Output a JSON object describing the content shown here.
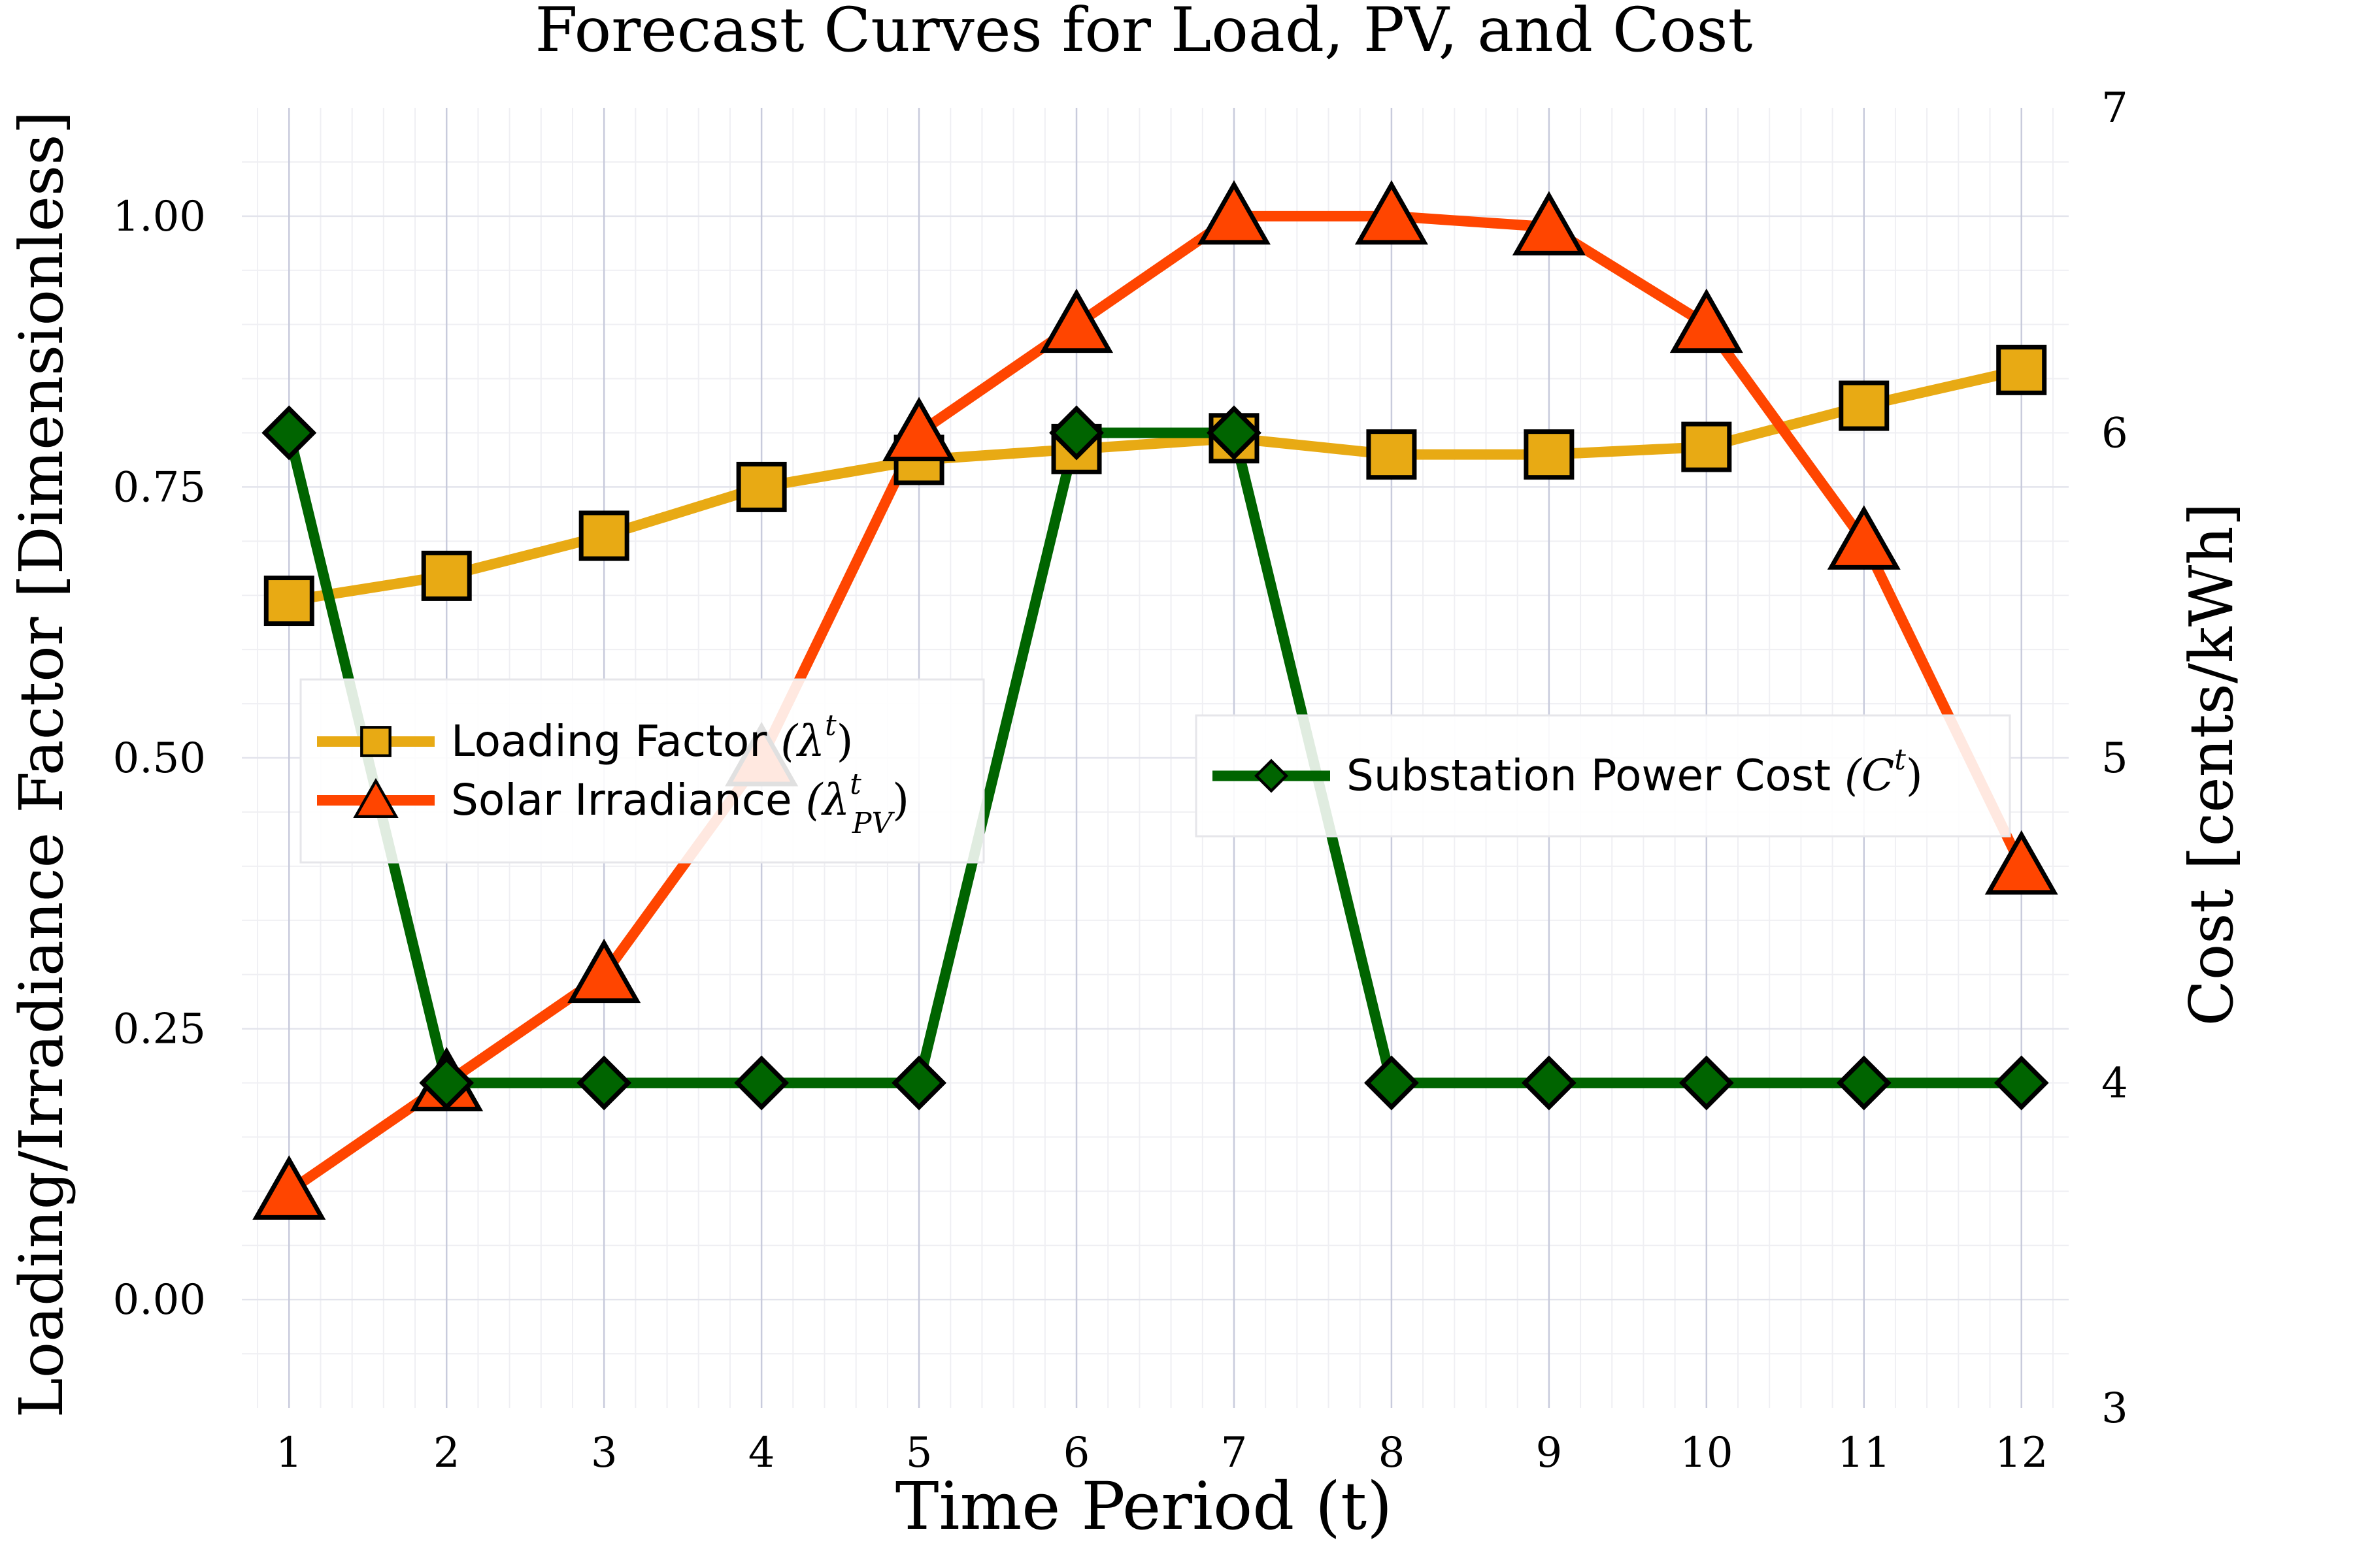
{
  "chart_data": {
    "type": "line",
    "title": "Forecast Curves for Load, PV, and Cost",
    "xlabel": "Time Period (t)",
    "ylabel": "Loading/Irradiance Factor [Dimensionless]",
    "ylabel_right": "Cost [cents/kWh]",
    "x": [
      1,
      2,
      3,
      4,
      5,
      6,
      7,
      8,
      9,
      10,
      11,
      12
    ],
    "x_ticks": [
      "1",
      "2",
      "3",
      "4",
      "5",
      "6",
      "7",
      "8",
      "9",
      "10",
      "11",
      "12"
    ],
    "xlim": [
      0.7,
      12.3
    ],
    "ylim": [
      -0.1,
      1.1
    ],
    "y_ticks": [
      "0.00",
      "0.25",
      "0.50",
      "0.75",
      "1.00"
    ],
    "y_tick_values": [
      0,
      0.25,
      0.5,
      0.75,
      1.0
    ],
    "ylim_right": [
      3,
      7
    ],
    "y_ticks_right": [
      "3",
      "4",
      "5",
      "6",
      "7"
    ],
    "y_tick_values_right": [
      3,
      4,
      5,
      6,
      7
    ],
    "grid": true,
    "series": [
      {
        "name": "Loading Factor (λ^t)",
        "axis": "left",
        "marker": "square",
        "color": "#E8AA14",
        "values": [
          0.645,
          0.668,
          0.705,
          0.75,
          0.775,
          0.785,
          0.795,
          0.78,
          0.78,
          0.787,
          0.825,
          0.858
        ]
      },
      {
        "name": "Solar Irradiance (λ_PV^t)",
        "axis": "left",
        "marker": "triangle",
        "color": "#FF4500",
        "values": [
          0.1,
          0.2,
          0.3,
          0.5,
          0.8,
          0.9,
          1.0,
          1.0,
          0.99,
          0.9,
          0.7,
          0.4
        ]
      },
      {
        "name": "Substation Power Cost (C^t)",
        "axis": "right",
        "marker": "diamond",
        "color": "#006400",
        "values": [
          6,
          4,
          4,
          4,
          4,
          6,
          6,
          4,
          4,
          4,
          4,
          4
        ]
      }
    ],
    "legends": [
      {
        "placement": "left-middle",
        "entries": [
          {
            "series": 0,
            "label": "Loading Factor",
            "math_base": "λ",
            "math_sup": "t",
            "math_sub": ""
          },
          {
            "series": 1,
            "label": "Solar Irradiance",
            "math_base": "λ",
            "math_sup": "t",
            "math_sub": "PV"
          }
        ]
      },
      {
        "placement": "right-middle",
        "entries": [
          {
            "series": 2,
            "label": "Substation Power Cost",
            "math_base": "C",
            "math_sup": "t",
            "math_sub": ""
          }
        ]
      }
    ],
    "colors": {
      "load": "#E8AA14",
      "pv": "#FF4500",
      "cost": "#006400",
      "major_grid": "#C8CBDC",
      "minor_grid": "#EFEFF3",
      "marker_edge": "#000000"
    }
  }
}
